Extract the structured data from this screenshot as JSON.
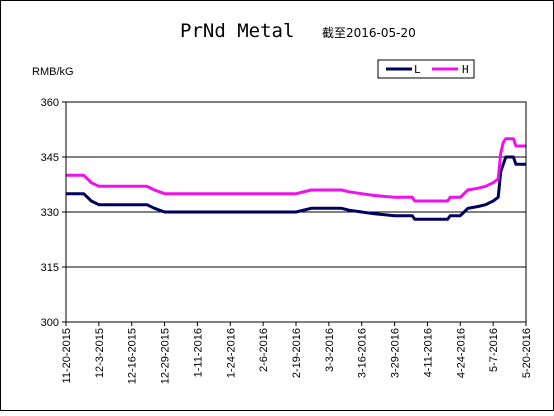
{
  "chart_data": {
    "type": "line",
    "title": "PrNd Metal",
    "subtitle": "截至2016-05-20",
    "ylabel": "RMB/kG",
    "xlabel": "",
    "ylim": [
      300,
      360
    ],
    "yticks": [
      300,
      315,
      330,
      345,
      360
    ],
    "grid": "horizontal",
    "legend_position": "top-right",
    "x_tick_labels": [
      "11-20-2015",
      "12-3-2015",
      "12-16-2015",
      "12-29-2015",
      "1-11-2016",
      "1-24-2016",
      "2-6-2016",
      "2-19-2016",
      "3-3-2016",
      "3-16-2016",
      "3-29-2016",
      "4-11-2016",
      "4-24-2016",
      "5-7-2016",
      "5-20-2016"
    ],
    "x": [
      "11-20-2015",
      "11-24-2015",
      "11-27-2015",
      "11-30-2015",
      "12-3-2015",
      "12-9-2015",
      "12-16-2015",
      "12-22-2015",
      "12-25-2015",
      "12-29-2015",
      "1-11-2016",
      "1-24-2016",
      "2-6-2016",
      "2-19-2016",
      "2-25-2016",
      "3-3-2016",
      "3-8-2016",
      "3-11-2016",
      "3-16-2016",
      "3-21-2016",
      "3-29-2016",
      "4-5-2016",
      "4-6-2016",
      "4-11-2016",
      "4-19-2016",
      "4-20-2016",
      "4-24-2016",
      "4-27-2016",
      "5-1-2016",
      "5-4-2016",
      "5-7-2016",
      "5-9-2016",
      "5-10-2016",
      "5-11-2016",
      "5-12-2016",
      "5-13-2016",
      "5-15-2016",
      "5-16-2016",
      "5-17-2016",
      "5-20-2016"
    ],
    "series": [
      {
        "name": "L",
        "color": "#00005e",
        "values": [
          335,
          335,
          335,
          333,
          332,
          332,
          332,
          332,
          331,
          330,
          330,
          330,
          330,
          330,
          331,
          331,
          331,
          330.5,
          330,
          329.5,
          329,
          329,
          328,
          328,
          328,
          329,
          329,
          331,
          331.5,
          332,
          333,
          334,
          341,
          343,
          345,
          345,
          345,
          343,
          343,
          343
        ]
      },
      {
        "name": "H",
        "color": "#ee11ee",
        "values": [
          340,
          340,
          340,
          338,
          337,
          337,
          337,
          337,
          336,
          335,
          335,
          335,
          335,
          335,
          336,
          336,
          336,
          335.5,
          335,
          334.5,
          334,
          334,
          333,
          333,
          333,
          334,
          334,
          336,
          336.5,
          337,
          338,
          339,
          346,
          349,
          350,
          350,
          350,
          348,
          348,
          348
        ]
      }
    ]
  },
  "colors": {
    "background": "#ffffff",
    "frame": "#000000",
    "grid": "#000000"
  }
}
